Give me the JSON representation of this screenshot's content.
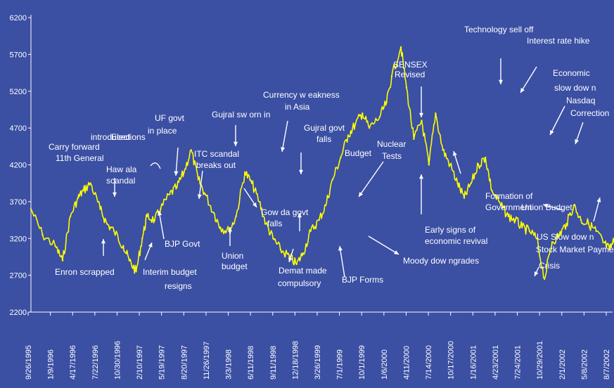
{
  "chart_data": {
    "type": "line",
    "title": "",
    "xlabel": "",
    "ylabel": "",
    "ylim": [
      2200,
      6200
    ],
    "yticks": [
      2200,
      2700,
      3200,
      3700,
      4200,
      4700,
      5200,
      5700,
      6200
    ],
    "xticks": [
      "9/26/1995",
      "1/9/1996",
      "4/17/1996",
      "7/22/1996",
      "10/30/1996",
      "2/10/1997",
      "5/19/1997",
      "8/20/1997",
      "11/26/1997",
      "3/3/1998",
      "6/11/1998",
      "9/11/1998",
      "12/18/1998",
      "3/26/1999",
      "7/1/1999",
      "10/1/1999",
      "1/6/2000",
      "4/11/2000",
      "7/14/2000",
      "10/17/2000",
      "1/16/2001",
      "4/23/2001",
      "7/24/2001",
      "10/29/2001",
      "2/1/2002",
      "5/8/2002",
      "8/7/2002"
    ],
    "grid": false,
    "colors": {
      "background": "#3b4fa3",
      "line": "#ffff00",
      "text": "#ffffff",
      "axis": "#ffffff"
    },
    "series": [
      {
        "name": "",
        "x": [
          "9/26/1995",
          "11/15/1995",
          "1/9/1996",
          "2/10/1996",
          "3/15/1996",
          "4/17/1996",
          "5/10/1996",
          "6/10/1996",
          "7/22/1996",
          "8/20/1996",
          "9/20/1996",
          "10/30/1996",
          "11/25/1996",
          "12/25/1996",
          "1/20/1997",
          "2/10/1997",
          "3/15/1997",
          "4/10/1997",
          "5/19/1997",
          "6/20/1997",
          "7/20/1997",
          "8/20/1997",
          "9/20/1997",
          "10/20/1997",
          "11/26/1997",
          "12/25/1997",
          "2/1/1998",
          "3/3/1998",
          "4/10/1998",
          "5/10/1998",
          "6/11/1998",
          "7/10/1998",
          "8/10/1998",
          "9/11/1998",
          "10/20/1998",
          "11/20/1998",
          "12/18/1998",
          "1/20/1999",
          "2/25/1999",
          "3/26/1999",
          "4/25/1999",
          "5/30/1999",
          "7/1/1999",
          "8/1/1999",
          "9/1/1999",
          "10/1/1999",
          "11/15/1999",
          "12/15/1999",
          "1/6/2000",
          "2/15/2000",
          "3/10/2000",
          "4/11/2000",
          "5/15/2000",
          "6/15/2000",
          "7/14/2000",
          "8/15/2000",
          "9/15/2000",
          "10/17/2000",
          "11/15/2000",
          "12/15/2000",
          "1/16/2001",
          "2/15/2001",
          "3/15/2001",
          "4/23/2001",
          "5/25/2001",
          "6/25/2001",
          "7/24/2001",
          "8/25/2001",
          "9/25/2001",
          "10/29/2001",
          "12/1/2001",
          "1/1/2002",
          "2/1/2002",
          "3/5/2002",
          "4/5/2002",
          "5/8/2002",
          "6/10/2002",
          "7/10/2002",
          "8/7/2002",
          "9/1/2002"
        ],
        "values": [
          3600,
          3250,
          3100,
          2900,
          3500,
          3750,
          3850,
          3950,
          3600,
          3400,
          3300,
          3100,
          2900,
          2750,
          3200,
          3500,
          3450,
          3600,
          3800,
          3900,
          4100,
          4400,
          4000,
          3800,
          3550,
          3350,
          3300,
          3500,
          4100,
          3950,
          3700,
          3400,
          3200,
          3050,
          2950,
          2850,
          3000,
          3300,
          3450,
          3650,
          4000,
          4300,
          4600,
          4750,
          4900,
          4700,
          4850,
          5050,
          5400,
          5800,
          5250,
          4550,
          4800,
          4200,
          4900,
          4400,
          4200,
          3950,
          3750,
          3950,
          4200,
          4300,
          3850,
          3650,
          3500,
          3450,
          3350,
          3300,
          3200,
          2650,
          3150,
          3250,
          3400,
          3650,
          3450,
          3400,
          3300,
          3150,
          3050,
          3200
        ]
      }
    ],
    "annotations": [
      "Enron scrapped",
      "Carry forward",
      "introduced",
      "11th General",
      "Elections",
      "Haw ala",
      "scandal",
      "UF govt",
      "in place",
      "BJP Govt",
      "Interim budget",
      "resigns",
      "ITC scandal",
      "breaks out",
      "Gujral sw orn in",
      "Union",
      "budget",
      "Currency w eakness",
      "in Asia",
      "Gow da govt",
      "falls",
      "Demat made",
      "compulsory",
      "Gujral govt",
      "falls",
      "Budget",
      "BJP Forms",
      "Nuclear",
      "Tests",
      "Moody dow ngrades",
      "SENSEX",
      "Revised",
      "Early signs of",
      "economic revival",
      "Formation of",
      "Government",
      "Technology sell off",
      "Interest rate hike",
      "Economic",
      "slow dow n",
      "Nasdaq",
      "Correction",
      "Union Budget",
      "US Slow dow n",
      "Stock Market Payment",
      "Crisis"
    ]
  }
}
